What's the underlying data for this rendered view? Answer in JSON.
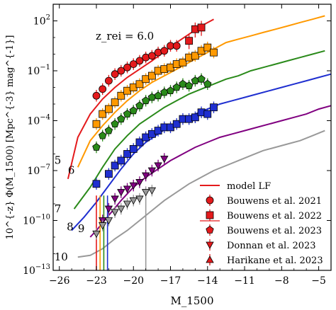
{
  "chart_data": {
    "type": "line",
    "annotation": "z_rei = 6.0",
    "xlabel": "M_1500",
    "ylabel": "10^{-z} Φ(M_1500)  [Mpc^{-3} mag^{-1}]",
    "xlim": [
      -26.5,
      -4
    ],
    "ylim_log10": [
      -13,
      3
    ],
    "x_ticks": [
      -26,
      -23,
      -20,
      -17,
      -14,
      -11,
      -8,
      -5
    ],
    "x_tick_labels": [
      "−26",
      "−23",
      "−20",
      "−17",
      "−14",
      "−11",
      "−8",
      "−5"
    ],
    "y_ticks_log10": [
      -13,
      -10,
      -7,
      -4,
      -1,
      2
    ],
    "y_tick_base": "10",
    "y_tick_exponents": [
      "−13",
      "−10",
      "−7",
      "−4",
      "−1",
      "2"
    ],
    "legend": {
      "placement": "lower-right",
      "entries": [
        {
          "label": "model LF",
          "marker": "line"
        },
        {
          "label": "Bouwens et al. 2021",
          "marker": "circle"
        },
        {
          "label": "Bouwens et al. 2022",
          "marker": "square"
        },
        {
          "label": "Bouwens et al. 2023",
          "marker": "pentagon"
        },
        {
          "label": "Donnan et al. 2023",
          "marker": "triangle-down"
        },
        {
          "label": "Harikane et al. 2023",
          "marker": "triangle-up"
        }
      ]
    },
    "series": [
      {
        "name": "5",
        "color": "#e41a1c",
        "marker": "circle",
        "x": [
          -25.3,
          -24.5,
          -23.5,
          -22.5,
          -21.5,
          -20.5,
          -19.5,
          -18.5,
          -17.5,
          -16.5,
          -15.5,
          -14.5,
          -13.5
        ],
        "y_log10": [
          -7.5,
          -5.0,
          -3.6,
          -2.7,
          -2.0,
          -1.4,
          -0.9,
          -0.4,
          0.15,
          0.7,
          1.2,
          1.7,
          2.1
        ],
        "points_x": [
          -23.0,
          -22.5,
          -22.0,
          -21.5,
          -21.0,
          -20.5,
          -20.0,
          -19.5,
          -19.0,
          -18.5,
          -18.0,
          -17.5,
          -17.0,
          -16.5
        ],
        "points_y_log10": [
          -2.5,
          -2.1,
          -1.6,
          -1.2,
          -1.0,
          -0.8,
          -0.6,
          -0.4,
          -0.2,
          -0.1,
          0.1,
          0.2,
          0.5,
          0.5
        ],
        "points_b22_x": [
          -15.5,
          -15.0,
          -14.5
        ],
        "points_b22_y_log10": [
          0.8,
          1.5,
          1.6
        ]
      },
      {
        "name": "6",
        "color": "#ff9900",
        "marker": "square",
        "x": [
          -24.5,
          -23.5,
          -22.5,
          -21.5,
          -20.5,
          -19.5,
          -18.5,
          -17.5,
          -16.5,
          -15.5,
          -14.5,
          -13.5,
          -12.5,
          -11.5,
          -10.5,
          -9.5,
          -8.5,
          -7.5,
          -6.5,
          -5.5,
          -4.5
        ],
        "y_log10": [
          -6.8,
          -5.2,
          -4.3,
          -3.5,
          -2.8,
          -2.2,
          -1.7,
          -1.3,
          -0.9,
          -0.5,
          -0.1,
          0.3,
          0.7,
          0.9,
          1.1,
          1.3,
          1.5,
          1.7,
          1.9,
          2.1,
          2.3
        ],
        "points_x": [
          -23.0,
          -22.5,
          -22.0,
          -21.5,
          -21.0,
          -20.5,
          -20.0,
          -19.5,
          -19.0,
          -18.5,
          -18.0,
          -17.5,
          -17.0,
          -16.5,
          -16.0,
          -15.5,
          -15.0,
          -14.5,
          -14.0,
          -13.5
        ],
        "points_y_log10": [
          -4.2,
          -3.6,
          -3.3,
          -2.9,
          -2.5,
          -2.2,
          -2.0,
          -1.8,
          -1.5,
          -1.3,
          -1.0,
          -0.9,
          -0.8,
          -0.6,
          -0.5,
          -0.2,
          -0.1,
          0.2,
          0.4,
          0.1
        ]
      },
      {
        "name": "7",
        "color": "#2a8a1a",
        "marker": "pentagon",
        "x": [
          -24.8,
          -23.5,
          -22.5,
          -21.5,
          -20.5,
          -19.5,
          -18.5,
          -17.5,
          -16.5,
          -15.5,
          -14.5,
          -13.5,
          -12.5,
          -11.5,
          -10.5,
          -9.5,
          -8.5,
          -7.5,
          -6.5,
          -5.5,
          -4.5
        ],
        "y_log10": [
          -9.3,
          -8.0,
          -6.8,
          -5.7,
          -4.9,
          -4.2,
          -3.7,
          -3.2,
          -2.8,
          -2.4,
          -2.1,
          -1.8,
          -1.5,
          -1.3,
          -1.0,
          -0.8,
          -0.6,
          -0.4,
          -0.2,
          0.0,
          0.2
        ],
        "points_x": [
          -23.0,
          -22.5,
          -22.0,
          -21.5,
          -21.0,
          -20.5,
          -20.0,
          -19.5,
          -19.0,
          -18.5,
          -18.0,
          -17.5,
          -17.0,
          -16.5,
          -16.0,
          -15.5,
          -15.0,
          -14.5,
          -14.0
        ],
        "points_y_log10": [
          -5.6,
          -4.9,
          -4.6,
          -4.2,
          -3.9,
          -3.6,
          -3.4,
          -3.1,
          -2.8,
          -2.6,
          -2.5,
          -2.3,
          -2.2,
          -2.0,
          -1.8,
          -1.9,
          -1.6,
          -1.5,
          -1.8
        ]
      },
      {
        "name": "8",
        "color": "#1f2fd0",
        "marker": "square",
        "x": [
          -25.0,
          -24.0,
          -23.0,
          -22.0,
          -21.0,
          -20.0,
          -19.0,
          -18.0,
          -17.0,
          -16.0,
          -15.0,
          -14.0,
          -13.0,
          -12.0,
          -11.0,
          -10.0,
          -9.0,
          -8.0,
          -7.0,
          -6.0,
          -5.0,
          -4.0
        ],
        "y_log10": [
          -10.6,
          -9.8,
          -8.9,
          -7.9,
          -6.9,
          -6.0,
          -5.3,
          -4.8,
          -4.3,
          -3.9,
          -3.6,
          -3.3,
          -3.0,
          -2.8,
          -2.6,
          -2.4,
          -2.2,
          -2.0,
          -1.8,
          -1.6,
          -1.4,
          -1.2
        ],
        "points_x": [
          -23.0,
          -22.0,
          -21.5,
          -21.0,
          -20.5,
          -20.0,
          -19.5,
          -19.0,
          -18.5,
          -18.0,
          -17.5,
          -17.0,
          -16.5,
          -16.0,
          -15.5,
          -15.0,
          -14.5,
          -14.0,
          -13.5
        ],
        "points_y_log10": [
          -7.8,
          -7.2,
          -6.7,
          -6.4,
          -6.0,
          -5.7,
          -5.3,
          -5.0,
          -4.8,
          -4.6,
          -4.4,
          -4.4,
          -4.2,
          -3.9,
          -3.9,
          -3.8,
          -3.5,
          -3.6,
          -3.2
        ]
      },
      {
        "name": "9",
        "color": "#800080",
        "marker": "triangle-down",
        "x": [
          -23.5,
          -23.0,
          -22.0,
          -21.0,
          -20.0,
          -19.0,
          -18.0,
          -17.0,
          -16.0,
          -15.0,
          -14.0,
          -13.0,
          -12.0,
          -11.0,
          -10.0,
          -9.0,
          -8.0,
          -7.0,
          -6.0,
          -5.0,
          -4.0
        ],
        "y_log10": [
          -11.0,
          -10.6,
          -9.7,
          -8.8,
          -8.0,
          -7.4,
          -6.9,
          -6.4,
          -6.0,
          -5.6,
          -5.3,
          -5.0,
          -4.8,
          -4.6,
          -4.4,
          -4.2,
          -4.0,
          -3.8,
          -3.6,
          -3.3,
          -3.1
        ],
        "points_x": [
          -22.5,
          -22.0,
          -21.5,
          -21.0,
          -20.5,
          -20.0,
          -19.5,
          -19.0,
          -18.5,
          -18.0,
          -17.5
        ],
        "points_y_log10": [
          -10.0,
          -9.3,
          -8.7,
          -8.3,
          -8.1,
          -7.9,
          -7.7,
          -7.3,
          -7.0,
          -6.7,
          -6.3
        ]
      },
      {
        "name": "10",
        "color": "#999999",
        "marker": "triangle-down",
        "x": [
          -24.5,
          -23.5,
          -22.5,
          -21.5,
          -20.5,
          -19.5,
          -18.5,
          -17.5,
          -16.5,
          -15.5,
          -14.5,
          -13.5,
          -12.5,
          -11.5,
          -10.5,
          -9.5,
          -8.5,
          -7.5,
          -6.5,
          -5.5,
          -4.5
        ],
        "y_log10": [
          -12.2,
          -12.1,
          -11.7,
          -11.1,
          -10.6,
          -10.0,
          -9.4,
          -8.8,
          -8.3,
          -7.8,
          -7.4,
          -7.0,
          -6.7,
          -6.4,
          -6.1,
          -5.8,
          -5.6,
          -5.4,
          -5.2,
          -4.9,
          -4.6
        ],
        "points_x": [
          -23.0,
          -22.5,
          -22.0,
          -21.5,
          -21.0,
          -20.5,
          -20.0,
          -19.5,
          -19.0,
          -18.5
        ],
        "points_y_log10": [
          -10.8,
          -10.3,
          -10.0,
          -9.5,
          -9.3,
          -9.0,
          -8.8,
          -8.7,
          -8.3,
          -8.2
        ]
      }
    ]
  }
}
